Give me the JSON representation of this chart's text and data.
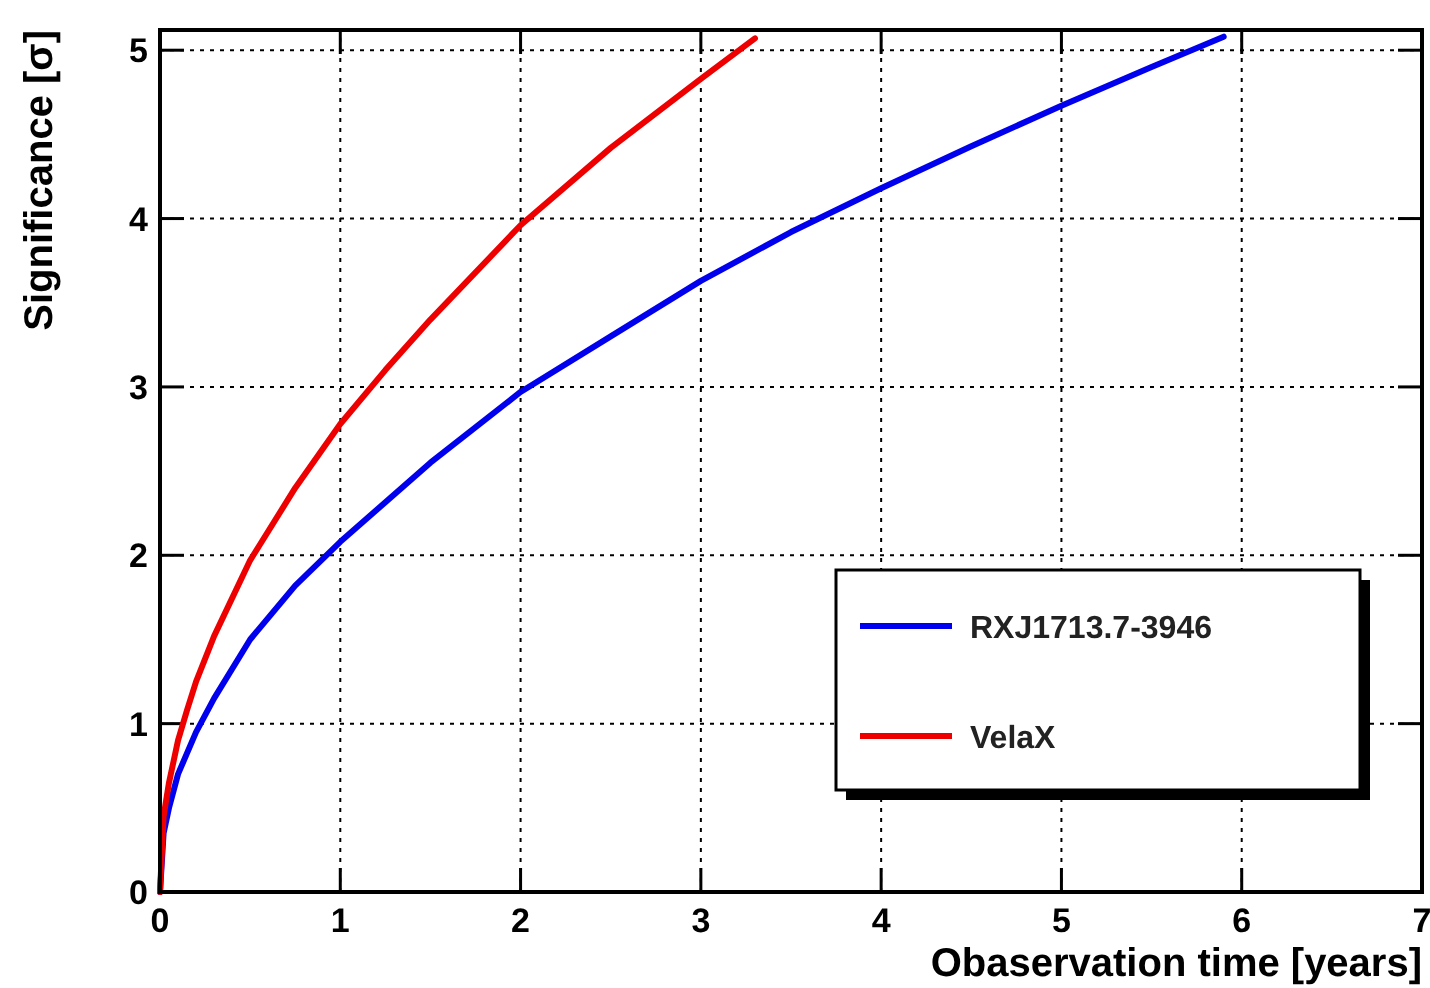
{
  "chart_data": {
    "type": "line",
    "xlabel": "Obaservation time [years]",
    "ylabel": "Significance [σ]",
    "xlim": [
      0,
      7
    ],
    "ylim": [
      0,
      5.12
    ],
    "xticks": [
      0,
      1,
      2,
      3,
      4,
      5,
      6,
      7
    ],
    "yticks": [
      0,
      1,
      2,
      3,
      4,
      5
    ],
    "grid": true,
    "legend": "bottom right",
    "line_style": "solid",
    "marker": "none",
    "series": [
      {
        "name": "RXJ1713.7-3946",
        "color": "#0000ee",
        "x": [
          0,
          0.02,
          0.05,
          0.1,
          0.2,
          0.3,
          0.5,
          0.75,
          1,
          1.5,
          2,
          2.5,
          3,
          3.5,
          4,
          4.5,
          5,
          5.5,
          5.9
        ],
        "values": [
          0,
          0.35,
          0.5,
          0.7,
          0.95,
          1.15,
          1.5,
          1.82,
          2.08,
          2.55,
          2.97,
          3.3,
          3.63,
          3.92,
          4.18,
          4.43,
          4.67,
          4.9,
          5.08
        ]
      },
      {
        "name": "VelaX",
        "color": "#ee0000",
        "x": [
          0,
          0.02,
          0.05,
          0.1,
          0.15,
          0.2,
          0.3,
          0.5,
          0.75,
          1,
          1.25,
          1.5,
          2,
          2.5,
          3,
          3.3
        ],
        "values": [
          0,
          0.45,
          0.65,
          0.9,
          1.08,
          1.25,
          1.52,
          1.97,
          2.4,
          2.78,
          3.1,
          3.4,
          3.96,
          4.42,
          4.83,
          5.07
        ]
      }
    ]
  }
}
